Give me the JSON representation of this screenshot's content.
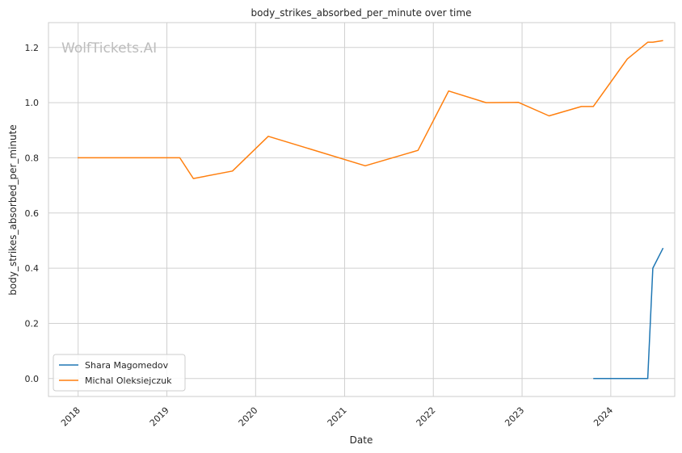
{
  "watermark": "WolfTickets.AI",
  "chart_data": {
    "type": "line",
    "title": "body_strikes_absorbed_per_minute over time",
    "xlabel": "Date",
    "ylabel": "body_strikes_absorbed_per_minute",
    "xlim": [
      "2017-09-01",
      "2024-09-20"
    ],
    "ylim": [
      -0.065,
      1.29
    ],
    "x_ticks": [
      "2018",
      "2019",
      "2020",
      "2021",
      "2022",
      "2023",
      "2024"
    ],
    "y_ticks": [
      "0.0",
      "0.2",
      "0.4",
      "0.6",
      "0.8",
      "1.0",
      "1.2"
    ],
    "grid": true,
    "legend_position": "lower-left",
    "series": [
      {
        "name": "Shara Magomedov",
        "color": "#1f77b4",
        "points": [
          [
            "2023-10-21",
            0.0
          ],
          [
            "2024-06-01",
            0.0
          ],
          [
            "2024-06-22",
            0.4
          ],
          [
            "2024-08-03",
            0.473
          ]
        ]
      },
      {
        "name": "Michal Oleksiejczuk",
        "color": "#ff7f0e",
        "points": [
          [
            "2017-12-30",
            0.8
          ],
          [
            "2019-02-23",
            0.8
          ],
          [
            "2019-04-20",
            0.725
          ],
          [
            "2019-09-28",
            0.752
          ],
          [
            "2020-02-22",
            0.878
          ],
          [
            "2021-03-27",
            0.771
          ],
          [
            "2021-10-30",
            0.827
          ],
          [
            "2022-03-05",
            1.042
          ],
          [
            "2022-08-06",
            1.0
          ],
          [
            "2022-12-17",
            1.001
          ],
          [
            "2023-04-22",
            0.952
          ],
          [
            "2023-09-02",
            0.986
          ],
          [
            "2023-10-21",
            0.986
          ],
          [
            "2024-03-09",
            1.158
          ],
          [
            "2024-06-01",
            1.219
          ],
          [
            "2024-06-22",
            1.219
          ],
          [
            "2024-08-03",
            1.225
          ]
        ]
      }
    ]
  }
}
